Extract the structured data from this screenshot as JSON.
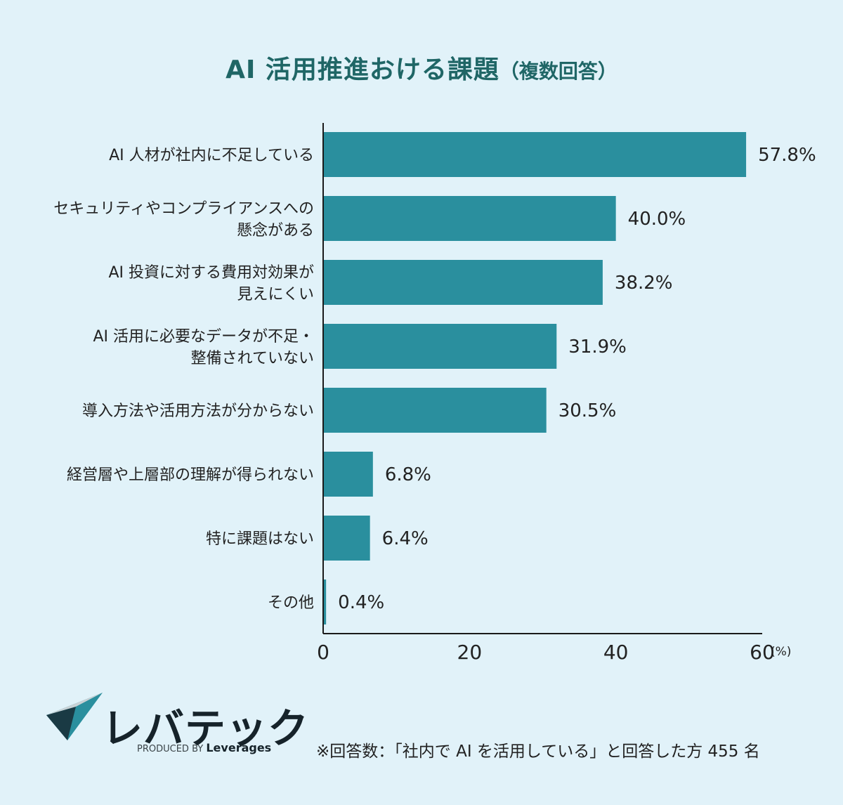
{
  "title": "AI 活用推進おける課題",
  "title_suffix": "（複数回答）",
  "chart_data": {
    "type": "bar",
    "orientation": "horizontal",
    "categories": [
      [
        "AI 人材が社内に不足している"
      ],
      [
        "セキュリティやコンプライアンスへの",
        "懸念がある"
      ],
      [
        "AI 投資に対する費用対効果が",
        "見えにくい"
      ],
      [
        "AI 活用に必要なデータが不足・",
        "整備されていない"
      ],
      [
        "導入方法や活用方法が分からない"
      ],
      [
        "経営層や上層部の理解が得られない"
      ],
      [
        "特に課題はない"
      ],
      [
        "その他"
      ]
    ],
    "values": [
      57.8,
      40.0,
      38.2,
      31.9,
      30.5,
      6.8,
      6.4,
      0.4
    ],
    "value_labels": [
      "57.8%",
      "40.0%",
      "38.2%",
      "31.9%",
      "30.5%",
      "6.8%",
      "6.4%",
      "0.4%"
    ],
    "xlim": [
      0,
      60
    ],
    "xticks": [
      "0",
      "20",
      "40",
      "60"
    ],
    "x_unit": "(%)",
    "bar_color": "#2a8f9e",
    "grid": false
  },
  "logo": {
    "name": "レバテック",
    "produced_by": "PRODUCED BY",
    "company": "Leverages"
  },
  "footnote": "※回答数：「社内で AI を活用している」と回答した方 455 名"
}
